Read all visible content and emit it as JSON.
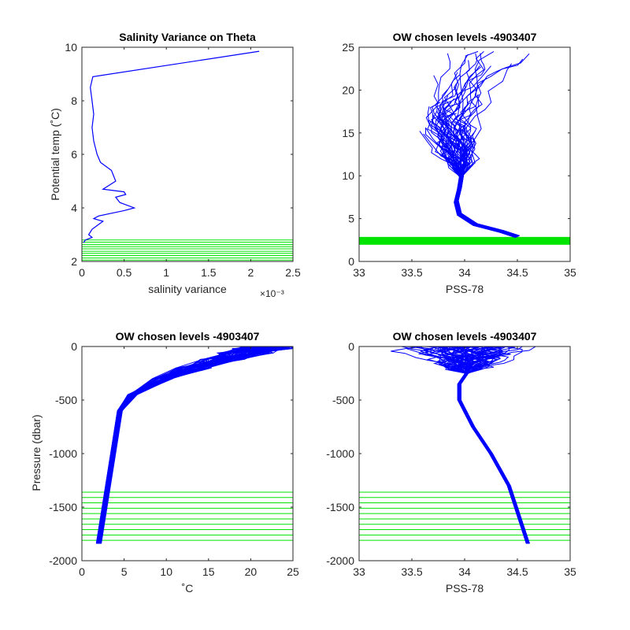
{
  "colors": {
    "profile": "#0000ff",
    "levels": "#00e400",
    "axis": "#262626"
  },
  "chart_data": [
    {
      "type": "line",
      "title": "Salinity Variance on Theta",
      "xlabel": "salinity variance",
      "ylabel": "Potential temp (˚C)",
      "xlim": [
        0,
        0.0025
      ],
      "ylim": [
        2,
        10
      ],
      "xticks": [
        0,
        0.0005,
        0.001,
        0.0015,
        0.002,
        0.0025
      ],
      "xtick_labels": [
        "0",
        "0.5",
        "1",
        "1.5",
        "2",
        "2.5"
      ],
      "x_multiplier": "×10⁻³",
      "yticks": [
        2,
        4,
        6,
        8,
        10
      ],
      "ytick_labels": [
        "2",
        "4",
        "6",
        "8",
        "10"
      ],
      "grid": false,
      "series": [
        {
          "x": [
            0.0021,
            0.00013,
            0.0001,
            0.00012,
            0.00014,
            0.00012,
            0.00014,
            0.00018,
            0.00022,
            0.00035,
            0.0004,
            0.00025,
            0.0005,
            0.00052,
            0.0004,
            0.00045,
            0.00062,
            0.0005,
            0.00035,
            0.0002,
            0.00014,
            0.00025,
            0.00012,
            8e-05,
            0.00012,
            4e-05,
            2e-05
          ],
          "y": [
            9.85,
            8.9,
            8.5,
            8.0,
            7.5,
            7.0,
            6.5,
            6.0,
            5.7,
            5.4,
            5.0,
            4.7,
            4.6,
            4.5,
            4.4,
            4.2,
            4.0,
            3.9,
            3.8,
            3.7,
            3.6,
            3.5,
            3.2,
            3.0,
            2.9,
            2.8,
            2.7
          ]
        }
      ],
      "levels": [
        2.05,
        2.13,
        2.22,
        2.3,
        2.38,
        2.47,
        2.55,
        2.63,
        2.72,
        2.8
      ]
    },
    {
      "type": "line",
      "title": "OW chosen levels -4903407",
      "xlabel": "PSS-78",
      "ylabel": "",
      "xlim": [
        33,
        35
      ],
      "ylim": [
        0,
        25
      ],
      "xticks": [
        33,
        33.5,
        34,
        34.5,
        35
      ],
      "xtick_labels": [
        "33",
        "33.5",
        "34",
        "34.5",
        "35"
      ],
      "yticks": [
        0,
        5,
        10,
        15,
        20,
        25
      ],
      "ytick_labels": [
        "0",
        "5",
        "10",
        "15",
        "20",
        "25"
      ],
      "grid": false,
      "levels": [
        2.05,
        2.13,
        2.22,
        2.3,
        2.38,
        2.47,
        2.55,
        2.63,
        2.72,
        2.8
      ]
    },
    {
      "type": "line",
      "title": "OW chosen levels -4903407",
      "xlabel": "˚C",
      "ylabel": "Pressure (dbar)",
      "xlim": [
        0,
        25
      ],
      "ylim": [
        -2000,
        0
      ],
      "xticks": [
        0,
        5,
        10,
        15,
        20,
        25
      ],
      "xtick_labels": [
        "0",
        "5",
        "10",
        "15",
        "20",
        "25"
      ],
      "yticks": [
        -2000,
        -1500,
        -1000,
        -500,
        0
      ],
      "ytick_labels": [
        "-2000",
        "-1500",
        "-1000",
        "-500",
        "0"
      ],
      "grid": false,
      "levels": [
        -1360,
        -1410,
        -1460,
        -1510,
        -1560,
        -1610,
        -1660,
        -1710,
        -1760,
        -1810
      ]
    },
    {
      "type": "line",
      "title": "OW chosen levels -4903407",
      "xlabel": "PSS-78",
      "ylabel": "",
      "xlim": [
        33,
        35
      ],
      "ylim": [
        -2000,
        0
      ],
      "xticks": [
        33,
        33.5,
        34,
        34.5,
        35
      ],
      "xtick_labels": [
        "33",
        "33.5",
        "34",
        "34.5",
        "35"
      ],
      "yticks": [
        -2000,
        -1500,
        -1000,
        -500,
        0
      ],
      "ytick_labels": [
        "-2000",
        "-1500",
        "-1000",
        "-500",
        "0"
      ],
      "grid": false,
      "levels": [
        -1360,
        -1410,
        -1460,
        -1510,
        -1560,
        -1610,
        -1660,
        -1710,
        -1760,
        -1810
      ]
    }
  ]
}
